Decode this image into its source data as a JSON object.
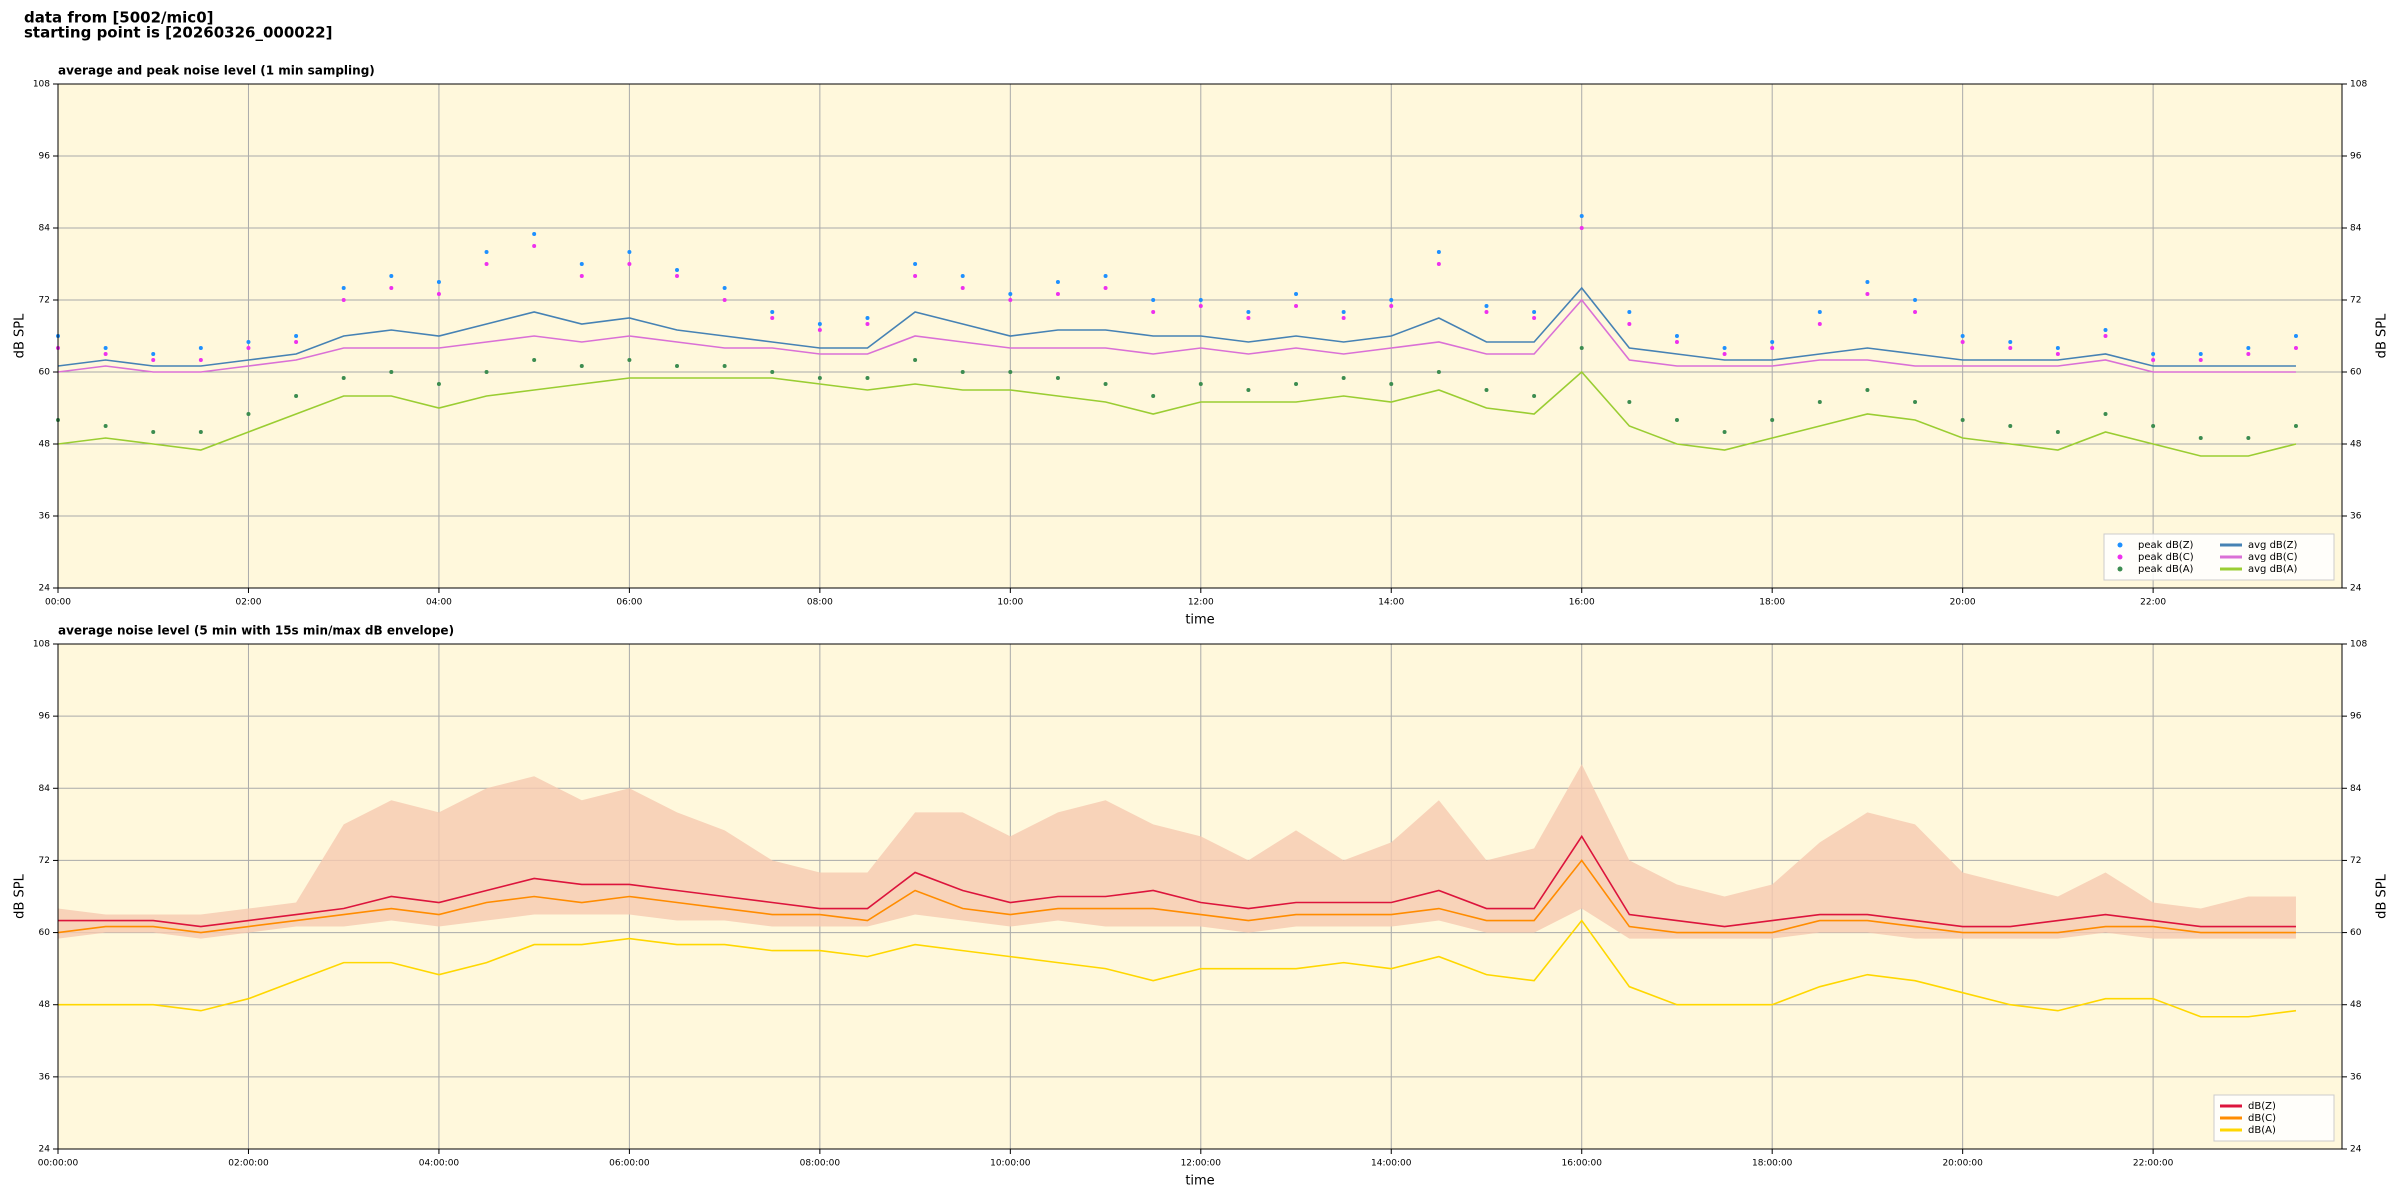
{
  "header": {
    "line1": "data from [5002/mic0]",
    "line2": "starting point is [20260326_000022]"
  },
  "chart_data": [
    {
      "type": "line",
      "title": "average and peak noise level (1 min sampling)",
      "xlabel": "time",
      "ylabel": "dB SPL",
      "x": [
        0,
        30,
        60,
        90,
        120,
        150,
        180,
        210,
        240,
        270,
        300,
        330,
        360,
        390,
        420,
        450,
        480,
        510,
        540,
        570,
        600,
        630,
        660,
        690,
        720,
        750,
        780,
        810,
        840,
        870,
        900,
        930,
        960,
        990,
        1020,
        1050,
        1080,
        1110,
        1140,
        1170,
        1200,
        1230,
        1260,
        1290,
        1320,
        1350,
        1380,
        1410
      ],
      "xlim": [
        0,
        1439
      ],
      "xticks": [
        {
          "value": 0,
          "label": "00:00"
        },
        {
          "value": 120,
          "label": "02:00"
        },
        {
          "value": 240,
          "label": "04:00"
        },
        {
          "value": 360,
          "label": "06:00"
        },
        {
          "value": 480,
          "label": "08:00"
        },
        {
          "value": 600,
          "label": "10:00"
        },
        {
          "value": 720,
          "label": "12:00"
        },
        {
          "value": 840,
          "label": "14:00"
        },
        {
          "value": 960,
          "label": "16:00"
        },
        {
          "value": 1080,
          "label": "18:00"
        },
        {
          "value": 1200,
          "label": "20:00"
        },
        {
          "value": 1320,
          "label": "22:00"
        }
      ],
      "ylim": [
        24,
        108
      ],
      "yticks": [
        24,
        36,
        48,
        60,
        72,
        84,
        96,
        108
      ],
      "grid": true,
      "background": "#fff8dc",
      "legend": "lower right",
      "legend_columns": 2,
      "series": [
        {
          "name": "peak dB(Z)",
          "style": "dots",
          "color": "#1e90ff",
          "values": [
            66,
            64,
            63,
            64,
            65,
            66,
            74,
            76,
            75,
            80,
            83,
            78,
            80,
            77,
            74,
            70,
            68,
            69,
            78,
            76,
            73,
            75,
            76,
            72,
            72,
            70,
            73,
            70,
            72,
            80,
            71,
            70,
            86,
            70,
            66,
            64,
            65,
            70,
            75,
            72,
            66,
            65,
            64,
            67,
            63,
            63,
            64,
            66
          ]
        },
        {
          "name": "peak dB(C)",
          "style": "dots",
          "color": "#ee30ee",
          "values": [
            64,
            63,
            62,
            62,
            64,
            65,
            72,
            74,
            73,
            78,
            81,
            76,
            78,
            76,
            72,
            69,
            67,
            68,
            76,
            74,
            72,
            73,
            74,
            70,
            71,
            69,
            71,
            69,
            71,
            78,
            70,
            69,
            84,
            68,
            65,
            63,
            64,
            68,
            73,
            70,
            65,
            64,
            63,
            66,
            62,
            62,
            63,
            64
          ]
        },
        {
          "name": "peak dB(A)",
          "style": "dots",
          "color": "#3c8c50",
          "values": [
            52,
            51,
            50,
            50,
            53,
            56,
            59,
            60,
            58,
            60,
            62,
            61,
            62,
            61,
            61,
            60,
            59,
            59,
            62,
            60,
            60,
            59,
            58,
            56,
            58,
            57,
            58,
            59,
            58,
            60,
            57,
            56,
            64,
            55,
            52,
            50,
            52,
            55,
            57,
            55,
            52,
            51,
            50,
            53,
            51,
            49,
            49,
            51
          ]
        },
        {
          "name": "avg dB(Z)",
          "style": "line",
          "color": "#4682b4",
          "values": [
            61,
            62,
            61,
            61,
            62,
            63,
            66,
            67,
            66,
            68,
            70,
            68,
            69,
            67,
            66,
            65,
            64,
            64,
            70,
            68,
            66,
            67,
            67,
            66,
            66,
            65,
            66,
            65,
            66,
            69,
            65,
            65,
            74,
            64,
            63,
            62,
            62,
            63,
            64,
            63,
            62,
            62,
            62,
            63,
            61,
            61,
            61,
            61
          ]
        },
        {
          "name": "avg dB(C)",
          "style": "line",
          "color": "#da70d6",
          "values": [
            60,
            61,
            60,
            60,
            61,
            62,
            64,
            64,
            64,
            65,
            66,
            65,
            66,
            65,
            64,
            64,
            63,
            63,
            66,
            65,
            64,
            64,
            64,
            63,
            64,
            63,
            64,
            63,
            64,
            65,
            63,
            63,
            72,
            62,
            61,
            61,
            61,
            62,
            62,
            61,
            61,
            61,
            61,
            62,
            60,
            60,
            60,
            60
          ]
        },
        {
          "name": "avg dB(A)",
          "style": "line",
          "color": "#9acd32",
          "values": [
            48,
            49,
            48,
            47,
            50,
            53,
            56,
            56,
            54,
            56,
            57,
            58,
            59,
            59,
            59,
            59,
            58,
            57,
            58,
            57,
            57,
            56,
            55,
            53,
            55,
            55,
            55,
            56,
            55,
            57,
            54,
            53,
            60,
            51,
            48,
            47,
            49,
            51,
            53,
            52,
            49,
            48,
            47,
            50,
            48,
            46,
            46,
            48
          ]
        }
      ]
    },
    {
      "type": "line",
      "title": "average noise level (5 min with 15s min/max dB envelope)",
      "xlabel": "time",
      "ylabel": "dB SPL",
      "x": [
        0,
        30,
        60,
        90,
        120,
        150,
        180,
        210,
        240,
        270,
        300,
        330,
        360,
        390,
        420,
        450,
        480,
        510,
        540,
        570,
        600,
        630,
        660,
        690,
        720,
        750,
        780,
        810,
        840,
        870,
        900,
        930,
        960,
        990,
        1020,
        1050,
        1080,
        1110,
        1140,
        1170,
        1200,
        1230,
        1260,
        1290,
        1320,
        1350,
        1380,
        1410
      ],
      "xlim": [
        0,
        1439
      ],
      "xticks": [
        {
          "value": 0,
          "label": "00:00:00"
        },
        {
          "value": 120,
          "label": "02:00:00"
        },
        {
          "value": 240,
          "label": "04:00:00"
        },
        {
          "value": 360,
          "label": "06:00:00"
        },
        {
          "value": 480,
          "label": "08:00:00"
        },
        {
          "value": 600,
          "label": "10:00:00"
        },
        {
          "value": 720,
          "label": "12:00:00"
        },
        {
          "value": 840,
          "label": "14:00:00"
        },
        {
          "value": 960,
          "label": "16:00:00"
        },
        {
          "value": 1080,
          "label": "18:00:00"
        },
        {
          "value": 1200,
          "label": "20:00:00"
        },
        {
          "value": 1320,
          "label": "22:00:00"
        }
      ],
      "ylim": [
        24,
        108
      ],
      "yticks": [
        24,
        36,
        48,
        60,
        72,
        84,
        96,
        108
      ],
      "grid": true,
      "background": "#fff8dc",
      "legend": "lower right",
      "legend_columns": 1,
      "envelope": {
        "color": "#f6c9b0",
        "max": [
          64,
          63,
          63,
          63,
          64,
          65,
          78,
          82,
          80,
          84,
          86,
          82,
          84,
          80,
          77,
          72,
          70,
          70,
          80,
          80,
          76,
          80,
          82,
          78,
          76,
          72,
          77,
          72,
          75,
          82,
          72,
          74,
          88,
          72,
          68,
          66,
          68,
          75,
          80,
          78,
          70,
          68,
          66,
          70,
          65,
          64,
          66,
          66
        ],
        "min": [
          59,
          60,
          60,
          59,
          60,
          61,
          61,
          62,
          61,
          62,
          63,
          63,
          63,
          62,
          62,
          61,
          61,
          61,
          63,
          62,
          61,
          62,
          61,
          61,
          61,
          60,
          61,
          61,
          61,
          62,
          60,
          60,
          64,
          59,
          59,
          59,
          59,
          60,
          60,
          59,
          59,
          59,
          59,
          60,
          59,
          59,
          59,
          59
        ]
      },
      "series": [
        {
          "name": "dB(Z)",
          "style": "line",
          "color": "#dc143c",
          "values": [
            62,
            62,
            62,
            61,
            62,
            63,
            64,
            66,
            65,
            67,
            69,
            68,
            68,
            67,
            66,
            65,
            64,
            64,
            70,
            67,
            65,
            66,
            66,
            67,
            65,
            64,
            65,
            65,
            65,
            67,
            64,
            64,
            76,
            63,
            62,
            61,
            62,
            63,
            63,
            62,
            61,
            61,
            62,
            63,
            62,
            61,
            61,
            61
          ]
        },
        {
          "name": "dB(C)",
          "style": "line",
          "color": "#ff8c00",
          "values": [
            60,
            61,
            61,
            60,
            61,
            62,
            63,
            64,
            63,
            65,
            66,
            65,
            66,
            65,
            64,
            63,
            63,
            62,
            67,
            64,
            63,
            64,
            64,
            64,
            63,
            62,
            63,
            63,
            63,
            64,
            62,
            62,
            72,
            61,
            60,
            60,
            60,
            62,
            62,
            61,
            60,
            60,
            60,
            61,
            61,
            60,
            60,
            60
          ]
        },
        {
          "name": "dB(A)",
          "style": "line",
          "color": "#ffd700",
          "values": [
            48,
            48,
            48,
            47,
            49,
            52,
            55,
            55,
            53,
            55,
            58,
            58,
            59,
            58,
            58,
            57,
            57,
            56,
            58,
            57,
            56,
            55,
            54,
            52,
            54,
            54,
            54,
            55,
            54,
            56,
            53,
            52,
            62,
            51,
            48,
            48,
            48,
            51,
            53,
            52,
            50,
            48,
            47,
            49,
            49,
            46,
            46,
            47
          ]
        }
      ]
    }
  ]
}
